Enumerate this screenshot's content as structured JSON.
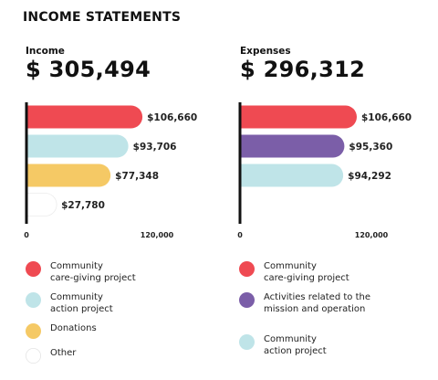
{
  "heading": "INCOME STATEMENTS",
  "chart_data": [
    {
      "type": "bar",
      "panel_label": "Income",
      "total_text": "$ 305,494",
      "xlim": [
        0,
        120000
      ],
      "tick_labels": [
        "0",
        "120,000"
      ],
      "bars": [
        {
          "label": "Community\ncare-giving project",
          "value": 106660,
          "value_text": "$106,660",
          "color": "#ef4a52"
        },
        {
          "label": "Community\naction project",
          "value": 93706,
          "value_text": "$93,706",
          "color": "#bfe4e8"
        },
        {
          "label": "Donations",
          "value": 77348,
          "value_text": "$77,348",
          "color": "#f5c965"
        },
        {
          "label": "Other",
          "value": 27780,
          "value_text": "$27,780",
          "color": "#ffffff"
        }
      ]
    },
    {
      "type": "bar",
      "panel_label": "Expenses",
      "total_text": "$ 296,312",
      "xlim": [
        0,
        120000
      ],
      "tick_labels": [
        "0",
        "120,000"
      ],
      "bars": [
        {
          "label": "Community\ncare-giving project",
          "value": 106660,
          "value_text": "$106,660",
          "color": "#ef4a52"
        },
        {
          "label": "Activities related to the\nmission and operation",
          "value": 95360,
          "value_text": "$95,360",
          "color": "#7b5ea8"
        },
        {
          "label": "Community\naction project",
          "value": 94292,
          "value_text": "$94,292",
          "color": "#bfe4e8"
        }
      ]
    }
  ]
}
